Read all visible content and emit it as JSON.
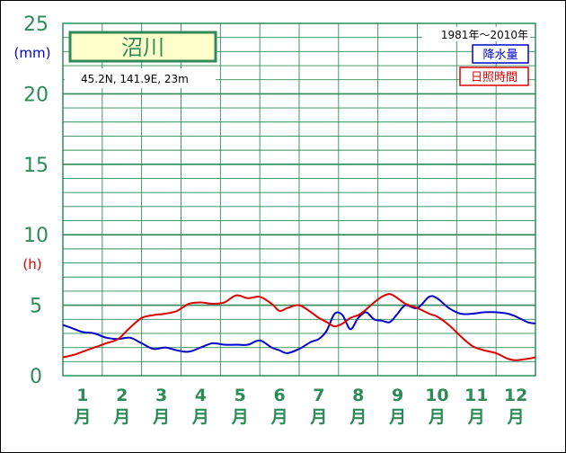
{
  "chart_data": {
    "type": "line",
    "station": "沼川",
    "coords": "45.2N,  141.9E,  23m",
    "period": "1981年〜2010年",
    "y_ticks": [
      "0",
      "5",
      "10",
      "15",
      "20",
      "25"
    ],
    "y_unit_top": "(mm)",
    "y_unit_mid": "(h)",
    "ylim": [
      0,
      25
    ],
    "grid": true,
    "x_labels": [
      {
        "num": "1",
        "unit": "月"
      },
      {
        "num": "2",
        "unit": "月"
      },
      {
        "num": "3",
        "unit": "月"
      },
      {
        "num": "4",
        "unit": "月"
      },
      {
        "num": "5",
        "unit": "月"
      },
      {
        "num": "6",
        "unit": "月"
      },
      {
        "num": "7",
        "unit": "月"
      },
      {
        "num": "8",
        "unit": "月"
      },
      {
        "num": "9",
        "unit": "月"
      },
      {
        "num": "10",
        "unit": "月"
      },
      {
        "num": "11",
        "unit": "月"
      },
      {
        "num": "12",
        "unit": "月"
      }
    ],
    "legend_position": "top-right",
    "colors": {
      "precip": "#0000cc",
      "sunshine": "#dd0000",
      "grid": "#2e8b57"
    },
    "series": [
      {
        "name": "降水量",
        "color": "#0000cc",
        "x": [
          0.5,
          0.8,
          1.0,
          1.3,
          1.6,
          1.9,
          2.2,
          2.5,
          2.8,
          3.1,
          3.4,
          3.7,
          4.0,
          4.3,
          4.6,
          4.9,
          5.2,
          5.5,
          5.8,
          6.0,
          6.2,
          6.5,
          6.8,
          7.0,
          7.2,
          7.4,
          7.6,
          7.8,
          8.0,
          8.2,
          8.4,
          8.6,
          8.8,
          9.0,
          9.2,
          9.5,
          9.8,
          10.0,
          10.3,
          10.6,
          10.9,
          11.2,
          11.5,
          11.8,
          12.0,
          12.3,
          12.5
        ],
        "values": [
          3.6,
          3.3,
          3.1,
          3.0,
          2.7,
          2.6,
          2.7,
          2.3,
          1.9,
          2.0,
          1.8,
          1.7,
          2.0,
          2.3,
          2.2,
          2.2,
          2.2,
          2.5,
          2.0,
          1.8,
          1.6,
          1.9,
          2.4,
          2.6,
          3.2,
          4.4,
          4.3,
          3.3,
          4.1,
          4.5,
          4.0,
          3.9,
          3.8,
          4.4,
          5.0,
          4.8,
          5.6,
          5.5,
          4.8,
          4.4,
          4.4,
          4.5,
          4.5,
          4.4,
          4.2,
          3.8,
          3.7
        ]
      },
      {
        "name": "日照時間",
        "color": "#dd0000",
        "x": [
          0.5,
          0.8,
          1.0,
          1.3,
          1.6,
          1.9,
          2.2,
          2.5,
          2.8,
          3.1,
          3.4,
          3.7,
          4.0,
          4.3,
          4.6,
          4.9,
          5.2,
          5.5,
          5.8,
          6.0,
          6.2,
          6.5,
          6.8,
          7.0,
          7.2,
          7.4,
          7.6,
          7.8,
          8.0,
          8.2,
          8.4,
          8.6,
          8.8,
          9.0,
          9.2,
          9.5,
          9.8,
          10.0,
          10.3,
          10.6,
          10.9,
          11.2,
          11.5,
          11.8,
          12.0,
          12.3,
          12.5
        ],
        "values": [
          1.3,
          1.5,
          1.7,
          2.0,
          2.3,
          2.6,
          3.4,
          4.1,
          4.3,
          4.4,
          4.6,
          5.1,
          5.2,
          5.1,
          5.2,
          5.7,
          5.5,
          5.6,
          5.1,
          4.6,
          4.8,
          5.0,
          4.5,
          4.1,
          3.8,
          3.5,
          3.7,
          4.1,
          4.3,
          4.7,
          5.2,
          5.6,
          5.8,
          5.5,
          5.1,
          4.8,
          4.4,
          4.2,
          3.6,
          2.8,
          2.1,
          1.8,
          1.6,
          1.2,
          1.1,
          1.2,
          1.3
        ]
      }
    ]
  }
}
